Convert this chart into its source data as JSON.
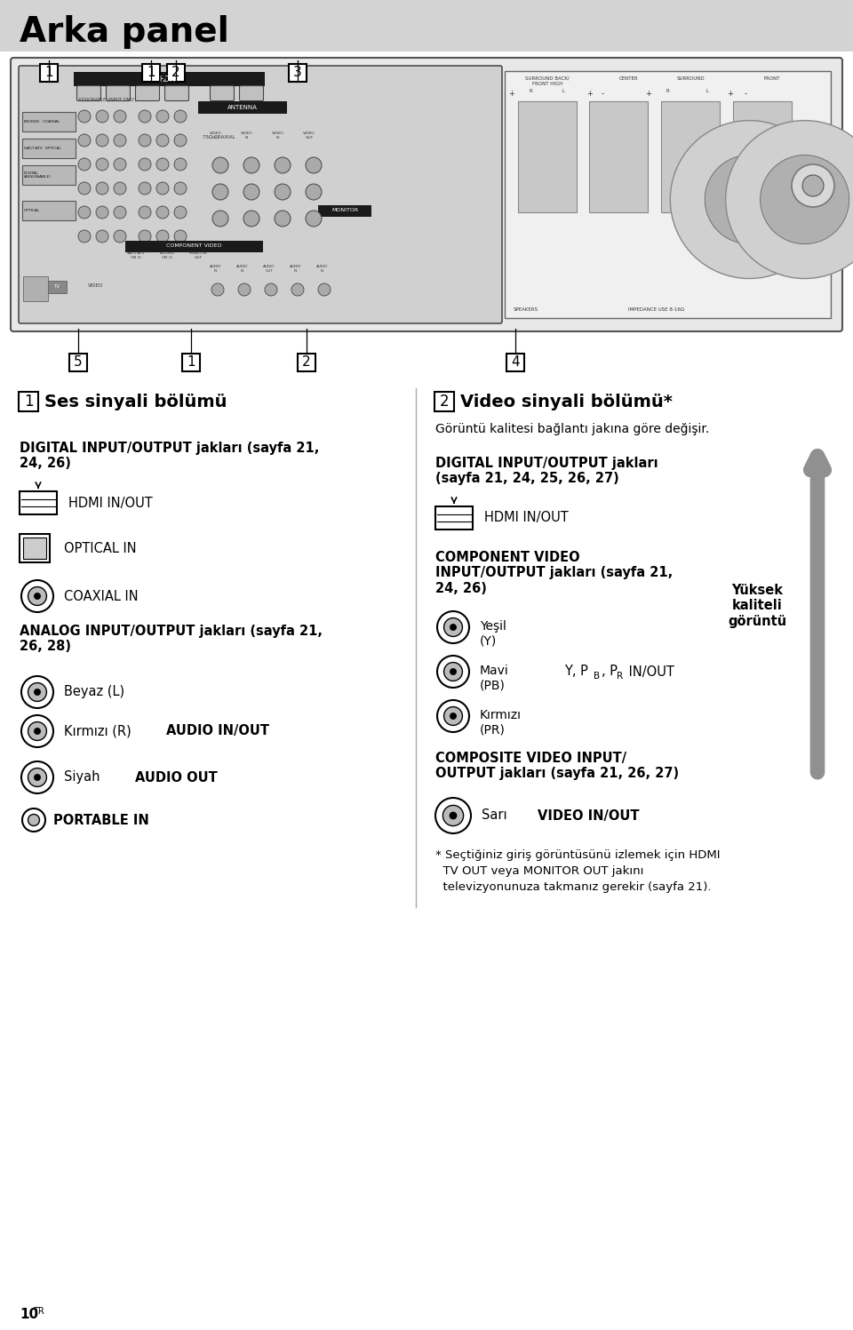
{
  "title": "Arka panel",
  "title_bg": "#d3d3d3",
  "page_bg": "#ffffff",
  "section1_header_num": "1",
  "section1_header_text": "Ses sinyali bölümü",
  "section2_header_num": "2",
  "section2_header_text": "Video sinyali bölümü*",
  "section2_subtitle": "Görüntü kalitesi bağlantı jakına göre değişir.",
  "s1_digital_header": "DIGITAL INPUT/OUTPUT jakları (sayfa 21,\n24, 26)",
  "s1_hdmi_label": "HDMI IN/OUT",
  "s1_optical_label": "OPTICAL IN",
  "s1_coaxial_label": "COAXIAL IN",
  "s1_analog_header": "ANALOG INPUT/OUTPUT jakları (sayfa 21,\n26, 28)",
  "s1_beyaz_label": "Beyaz (L)",
  "s1_kirmizi_label": "Kırmızı (R)",
  "s1_audio_inout_label": "AUDIO IN/OUT",
  "s1_siyah_label": "Siyah",
  "s1_audio_out_label": "AUDIO OUT",
  "s1_portable_label": "PORTABLE IN",
  "s2_digital_header": "DIGITAL INPUT/OUTPUT jakları\n(sayfa 21, 24, 25, 26, 27)",
  "s2_hdmi_label": "HDMI IN/OUT",
  "s2_component_header": "COMPONENT VIDEO\nINPUT/OUTPUT jakları (sayfa 21,\n24, 26)",
  "s2_yesil_label": "Yeşil\n(Y)",
  "s2_mavi_label": "Mavi\n(PB)",
  "s2_kirmizi_label": "Kırmızı\n(PR)",
  "s2_ypbpr_label": "Y, PB, PR IN/OUT",
  "s2_composite_header": "COMPOSITE VIDEO INPUT/\nOUTPUT jakları (sayfa 21, 26, 27)",
  "s2_sari_label": "Sarı",
  "s2_video_label": "VIDEO IN/OUT",
  "s2_arrow_label": "Yüksek\nkaliteli\ngörüntü",
  "footnote_line1": "* Seçtiğiniz giriş görüntüsünü izlemek için HDMI",
  "footnote_line2": "  TV OUT veya MONITOR OUT jakını",
  "footnote_line3": "  televizyonunuza takmanız gerekir (sayfa 21).",
  "page_num": "10",
  "page_num_sup": "TR"
}
